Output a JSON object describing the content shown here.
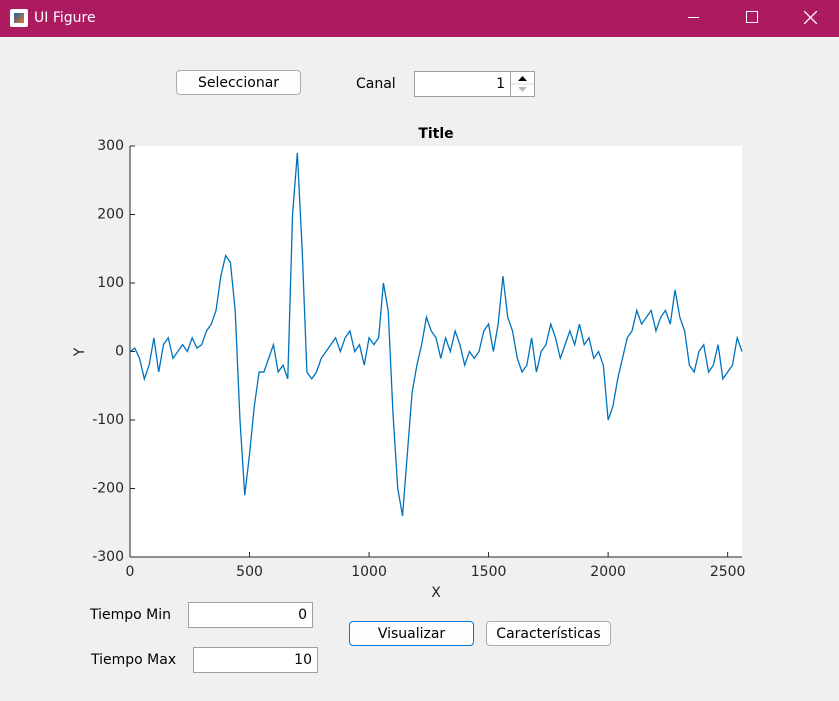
{
  "window": {
    "title": "UI Figure"
  },
  "controls": {
    "select_button": "Seleccionar",
    "channel_label": "Canal",
    "channel_value": 1,
    "time_min_label": "Tiempo Min",
    "time_min_value": 0,
    "time_max_label": "Tiempo Max",
    "time_max_value": 10,
    "visualize_button": "Visualizar",
    "features_button": "Características"
  },
  "chart_data": {
    "type": "line",
    "title": "Title",
    "x_label": "X",
    "y_label": "Y",
    "color": "#0072bd",
    "xlim": [
      0,
      2560
    ],
    "ylim": [
      -300,
      300
    ],
    "xticks": [
      0,
      500,
      1000,
      1500,
      2000,
      2500
    ],
    "yticks": [
      -300,
      -200,
      -100,
      0,
      100,
      200,
      300
    ],
    "x": [
      0,
      20,
      40,
      60,
      80,
      100,
      120,
      140,
      160,
      180,
      200,
      220,
      240,
      260,
      280,
      300,
      320,
      340,
      360,
      380,
      400,
      420,
      440,
      460,
      480,
      500,
      520,
      540,
      560,
      580,
      600,
      620,
      640,
      660,
      680,
      700,
      720,
      740,
      760,
      780,
      800,
      820,
      840,
      860,
      880,
      900,
      920,
      940,
      960,
      980,
      1000,
      1020,
      1040,
      1060,
      1080,
      1100,
      1120,
      1140,
      1160,
      1180,
      1200,
      1220,
      1240,
      1260,
      1280,
      1300,
      1320,
      1340,
      1360,
      1380,
      1400,
      1420,
      1440,
      1460,
      1480,
      1500,
      1520,
      1540,
      1560,
      1580,
      1600,
      1620,
      1640,
      1660,
      1680,
      1700,
      1720,
      1740,
      1760,
      1780,
      1800,
      1820,
      1840,
      1860,
      1880,
      1900,
      1920,
      1940,
      1960,
      1980,
      2000,
      2020,
      2040,
      2060,
      2080,
      2100,
      2120,
      2140,
      2160,
      2180,
      2200,
      2220,
      2240,
      2260,
      2280,
      2300,
      2320,
      2340,
      2360,
      2380,
      2400,
      2420,
      2440,
      2460,
      2480,
      2500,
      2520,
      2540,
      2560
    ],
    "values": [
      0,
      5,
      -10,
      -40,
      -20,
      20,
      -30,
      10,
      20,
      -10,
      0,
      10,
      0,
      20,
      5,
      10,
      30,
      40,
      60,
      110,
      140,
      130,
      60,
      -100,
      -210,
      -150,
      -80,
      -30,
      -30,
      -10,
      10,
      -30,
      -20,
      -40,
      200,
      290,
      150,
      -30,
      -40,
      -30,
      -10,
      0,
      10,
      20,
      0,
      20,
      30,
      0,
      10,
      -20,
      20,
      10,
      20,
      100,
      60,
      -90,
      -200,
      -240,
      -150,
      -60,
      -20,
      10,
      50,
      30,
      20,
      -10,
      20,
      0,
      30,
      10,
      -20,
      0,
      -10,
      0,
      30,
      40,
      0,
      40,
      110,
      50,
      30,
      -10,
      -30,
      -20,
      20,
      -30,
      0,
      10,
      40,
      20,
      -10,
      10,
      30,
      10,
      40,
      10,
      20,
      -10,
      0,
      -20,
      -100,
      -80,
      -40,
      -10,
      20,
      30,
      60,
      40,
      50,
      60,
      30,
      50,
      60,
      40,
      90,
      50,
      30,
      -20,
      -30,
      0,
      10,
      -30,
      -20,
      10,
      -40,
      -30,
      -20,
      20,
      0
    ]
  }
}
